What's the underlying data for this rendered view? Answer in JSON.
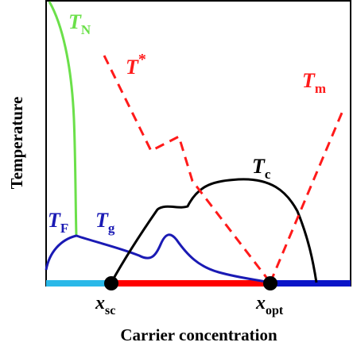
{
  "axes": {
    "ylabel": "Temperature",
    "xlabel": "Carrier concentration"
  },
  "curves": {
    "TN": {
      "label": "T",
      "sub": "N",
      "color": "#6be04a"
    },
    "TF": {
      "label": "T",
      "sub": "F",
      "color": "#1a1ab4"
    },
    "Tg": {
      "label": "T",
      "sub": "g",
      "color": "#1a1ab4"
    },
    "Tc": {
      "label": "T",
      "sub": "c",
      "color": "#000000"
    },
    "Tstar": {
      "label": "T",
      "sup": "*",
      "color": "#ff1a1a"
    },
    "Tm": {
      "label": "T",
      "sub": "m",
      "color": "#ff1a1a"
    }
  },
  "points": {
    "xsc": {
      "label": "x",
      "sub": "sc"
    },
    "xopt": {
      "label": "x",
      "sub": "opt"
    }
  },
  "baseline_colors": {
    "left": "#2ab8e8",
    "middle": "#ff0000",
    "right": "#0a14c8"
  }
}
